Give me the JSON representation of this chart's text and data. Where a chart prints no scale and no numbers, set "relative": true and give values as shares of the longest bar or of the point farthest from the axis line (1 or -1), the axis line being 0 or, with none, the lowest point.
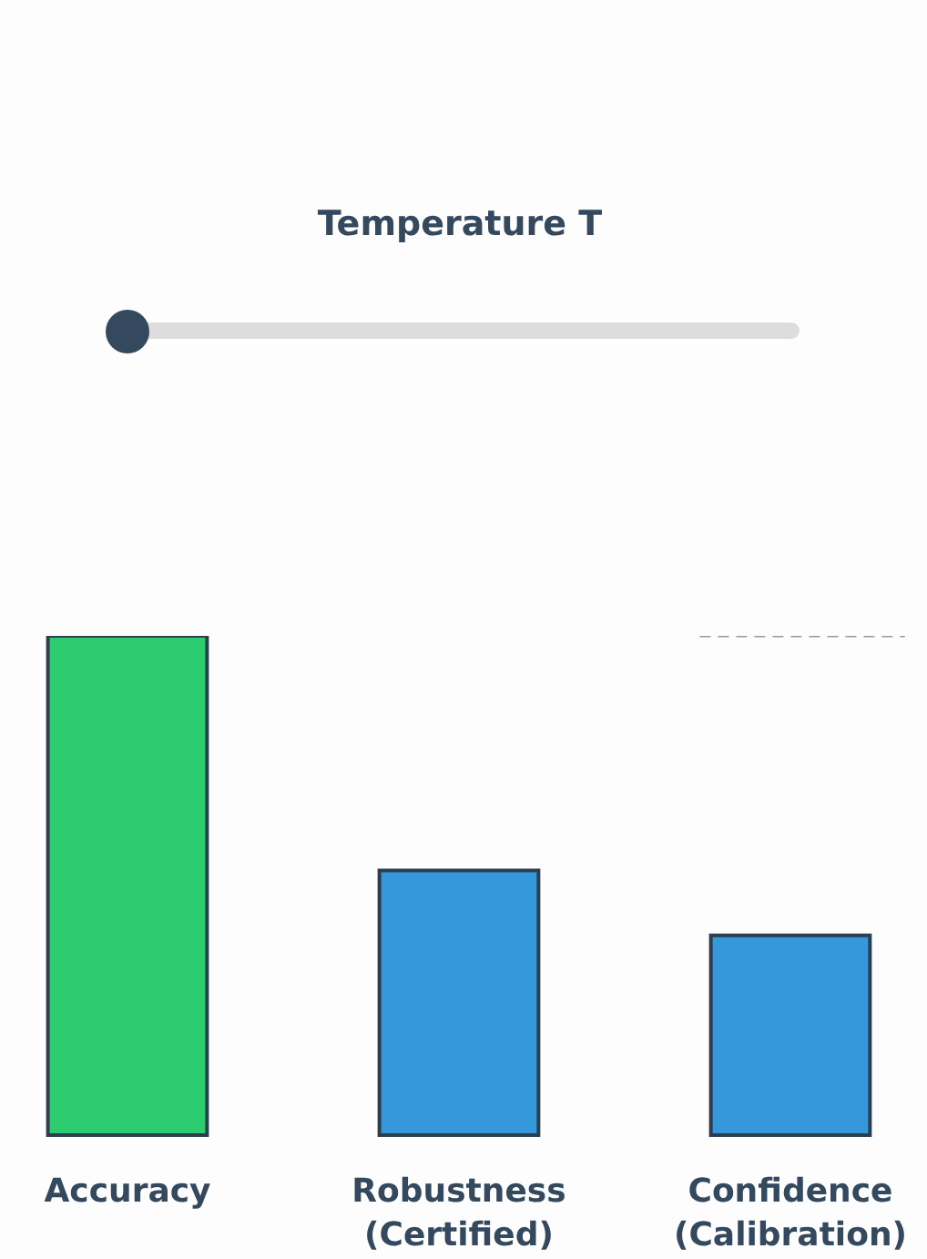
{
  "chart_data": {
    "type": "bar",
    "title": "Temperature T",
    "relative": true,
    "categories": [
      "Accuracy",
      "Robustness (Certified)",
      "Confidence (Calibration)"
    ],
    "values": [
      1,
      0.53,
      0.4
    ],
    "colors": [
      "#2ecc71",
      "#3498db",
      "#3498db"
    ],
    "ref_lines": [
      {
        "axis": "y",
        "value": 1,
        "color": "#999999",
        "line_style": "dashed"
      }
    ]
  }
}
